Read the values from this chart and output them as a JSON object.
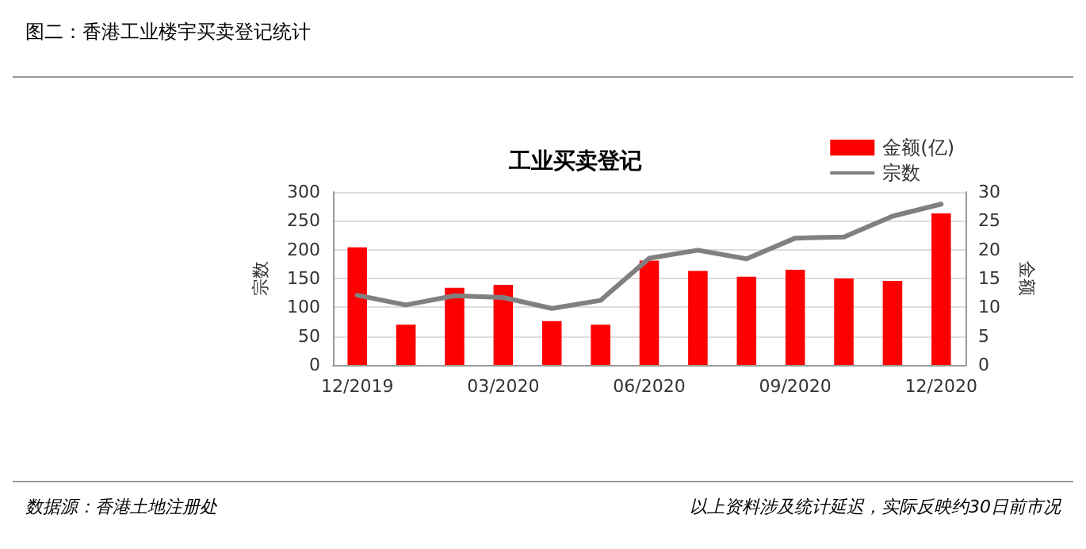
{
  "chart_data": {
    "type": "bar",
    "title": "图二：香港工业楼宇买卖登记统计",
    "subtitle": "工业买卖登记",
    "ylabel": "宗数",
    "y2label": "金额",
    "categories": [
      "12/2019",
      null,
      null,
      "03/2020",
      null,
      null,
      "06/2020",
      null,
      null,
      "09/2020",
      null,
      null,
      "12/2020"
    ],
    "series": [
      {
        "name": "金额(亿)",
        "axis": "y2",
        "color": "#ff0000",
        "values": [
          20.4,
          7.0,
          13.4,
          13.9,
          7.6,
          7.0,
          18.1,
          16.3,
          15.3,
          16.5,
          15.0,
          14.6,
          26.3
        ]
      },
      {
        "name": "宗数",
        "type": "line",
        "color": "#808080",
        "values": [
          121,
          104,
          120,
          117,
          98,
          112,
          185,
          199,
          184,
          220,
          222,
          258,
          279
        ]
      }
    ],
    "ylim": [
      0,
      300
    ],
    "yticks": [
      0,
      50,
      100,
      150,
      200,
      250,
      300
    ],
    "y2lim": [
      0,
      30
    ],
    "y2ticks": [
      0,
      5,
      10,
      15,
      20,
      25,
      30
    ],
    "grid": "y",
    "legend": "top right",
    "marker": "none",
    "line_style": "solid",
    "annotations": [
      "数据源：香港土地注册处",
      "以上资料涉及统计延迟，实际反映约30日前市况"
    ]
  }
}
